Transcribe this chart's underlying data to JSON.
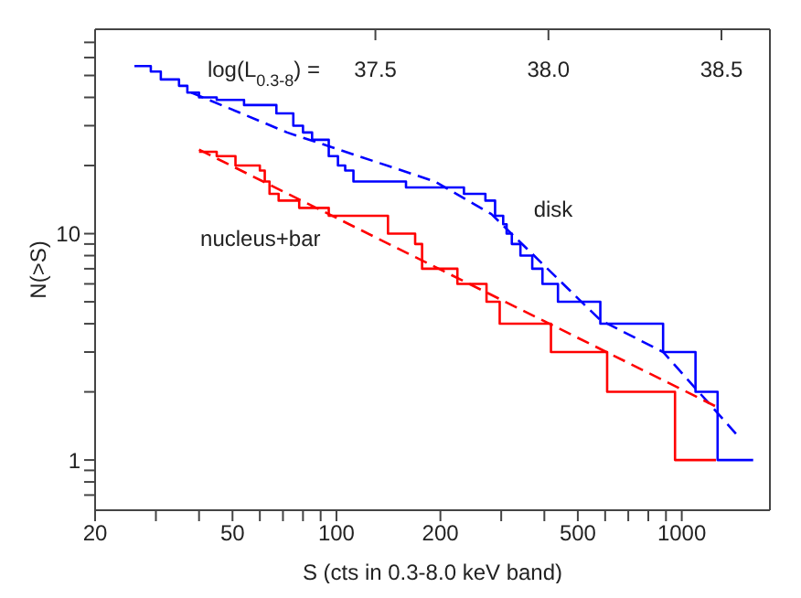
{
  "chart_data": {
    "type": "step",
    "xlabel": "S (cts in 0.3-8.0 keV band)",
    "ylabel": "N(>S)",
    "x2label": "log(L$_{0.3-8}$) =",
    "log": "xy",
    "marker": "none",
    "xlim": [
      20,
      1800
    ],
    "xticks": [
      20,
      {
        "value": 30,
        "label": null
      },
      {
        "value": 40,
        "label": null
      },
      50,
      {
        "value": 60,
        "label": null
      },
      {
        "value": 70,
        "label": null
      },
      {
        "value": 80,
        "label": null
      },
      {
        "value": 90,
        "label": null
      },
      100,
      200,
      {
        "value": 300,
        "label": null
      },
      {
        "value": 400,
        "label": null
      },
      500,
      {
        "value": 600,
        "label": null
      },
      {
        "value": 700,
        "label": null
      },
      {
        "value": 800,
        "label": null
      },
      {
        "value": 900,
        "label": null
      },
      1000
    ],
    "ylim": [
      0.6,
      80
    ],
    "yticks": [
      {
        "value": 0.7,
        "label": null
      },
      {
        "value": 0.8,
        "label": null
      },
      {
        "value": 0.9,
        "label": null
      },
      1,
      {
        "value": 2,
        "label": null
      },
      {
        "value": 3,
        "label": null
      },
      {
        "value": 4,
        "label": null
      },
      {
        "value": 5,
        "label": null
      },
      {
        "value": 6,
        "label": null
      },
      {
        "value": 7,
        "label": null
      },
      {
        "value": 8,
        "label": null
      },
      {
        "value": 9,
        "label": null
      },
      10,
      {
        "value": 20,
        "label": null
      },
      {
        "value": 30,
        "label": null
      },
      {
        "value": 40,
        "label": null
      },
      {
        "value": 50,
        "label": null
      },
      {
        "value": 60,
        "label": null
      },
      {
        "value": 70,
        "label": null
      }
    ],
    "x2lim": [
      36.69,
      38.64
    ],
    "x2ticks": [
      {
        "value": 37.5,
        "label": "37.5"
      },
      {
        "value": 38.0,
        "label": "38.0"
      },
      {
        "value": 38.5,
        "label": "38.5"
      }
    ],
    "series": [
      {
        "name": "disk",
        "color": "#0000ff",
        "x": [
          26,
          29,
          31,
          35,
          37,
          40,
          45,
          54,
          67,
          75,
          80,
          85,
          95,
          101,
          106,
          112,
          159,
          234,
          270,
          288,
          304,
          311,
          322,
          341,
          369,
          395,
          438,
          581,
          883,
          1096,
          1270,
          1610
        ],
        "values": [
          55,
          52,
          48,
          45,
          42,
          40,
          39,
          37,
          34,
          30,
          28,
          26,
          22,
          20,
          19,
          17,
          16,
          15,
          14,
          12,
          11,
          10,
          9,
          8,
          7,
          6,
          5,
          4,
          3,
          2,
          1,
          1
        ]
      },
      {
        "name": "nucleus+bar",
        "color": "#ff0000",
        "x": [
          40,
          45,
          51,
          60,
          62,
          64,
          68,
          78,
          95,
          141,
          169,
          177,
          224,
          272,
          297,
          418,
          608,
          956,
          1256
        ],
        "values": [
          23,
          22,
          20,
          19,
          17,
          15,
          14,
          13,
          12,
          10,
          9,
          7,
          6,
          5,
          4,
          3,
          2,
          1,
          1
        ]
      },
      {
        "type": "line",
        "color": "#0000ff",
        "line_style": "dashed",
        "x": [
          38,
          72,
          193,
          281,
          581,
          883,
          1440
        ],
        "values": [
          42,
          28,
          17,
          12.2,
          4.15,
          3.0,
          1.3
        ]
      },
      {
        "type": "line",
        "color": "#ff0000",
        "line_style": "dashed",
        "x": [
          40,
          1280
        ],
        "values": [
          23.5,
          1.7
        ]
      }
    ]
  }
}
